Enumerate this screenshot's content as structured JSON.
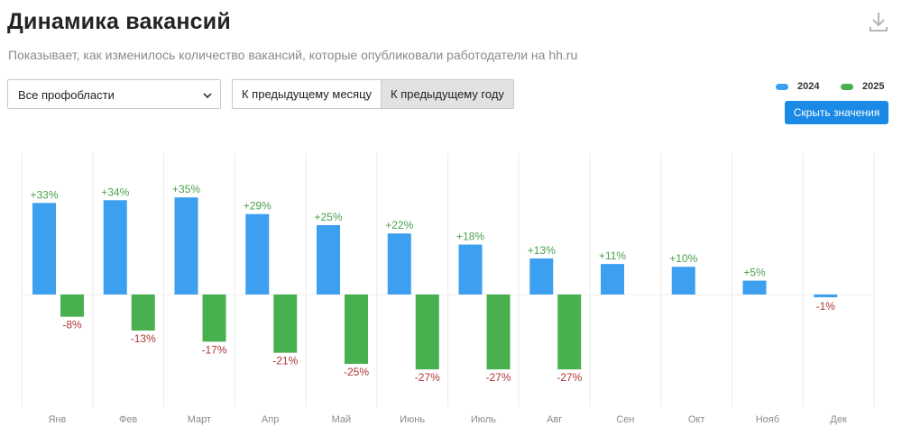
{
  "header": {
    "title": "Динамика вакансий",
    "subtitle": "Показывает, как изменилось количество вакансий, которые опубликовали работодатели на hh.ru",
    "download_icon": "download-icon"
  },
  "controls": {
    "profarea_select": {
      "value": "Все профобласти",
      "icon": "chevron-down-icon"
    },
    "period_toggle": {
      "options": [
        "К предыдущему месяцу",
        "К предыдущему году"
      ],
      "selected": "К предыдущему году"
    },
    "hide_values_label": "Скрыть значения"
  },
  "colors": {
    "series_2024": "#3d9ff0",
    "series_2025": "#49b04f",
    "positive_label": "#4aa14e",
    "negative_label": "#b03537",
    "grid": "#ebebeb",
    "month_label": "#8a8a8a"
  },
  "chart_data": {
    "type": "bar",
    "title": "Динамика вакансий",
    "xlabel": "",
    "ylabel": "",
    "unit": "%",
    "ylim": [
      -35,
      45
    ],
    "legend_position": "top-right",
    "grid": "vertical",
    "categories": [
      "Янв",
      "Фев",
      "Март",
      "Апр",
      "Май",
      "Июнь",
      "Июль",
      "Авг",
      "Сен",
      "Окт",
      "Нояб",
      "Дек"
    ],
    "series": [
      {
        "name": "2024",
        "values": [
          33,
          34,
          35,
          29,
          25,
          22,
          18,
          13,
          11,
          10,
          5,
          -1
        ],
        "labels": [
          "+33%",
          "+34%",
          "+35%",
          "+29%",
          "+25%",
          "+22%",
          "+18%",
          "+13%",
          "+11%",
          "+10%",
          "+5%",
          "-1%"
        ]
      },
      {
        "name": "2025",
        "values": [
          -8,
          -13,
          -17,
          -21,
          -25,
          -27,
          -27,
          -27,
          null,
          null,
          null,
          null
        ],
        "labels": [
          "-8%",
          "-13%",
          "-17%",
          "-21%",
          "-25%",
          "-27%",
          "-27%",
          "-27%",
          null,
          null,
          null,
          null
        ]
      }
    ]
  }
}
